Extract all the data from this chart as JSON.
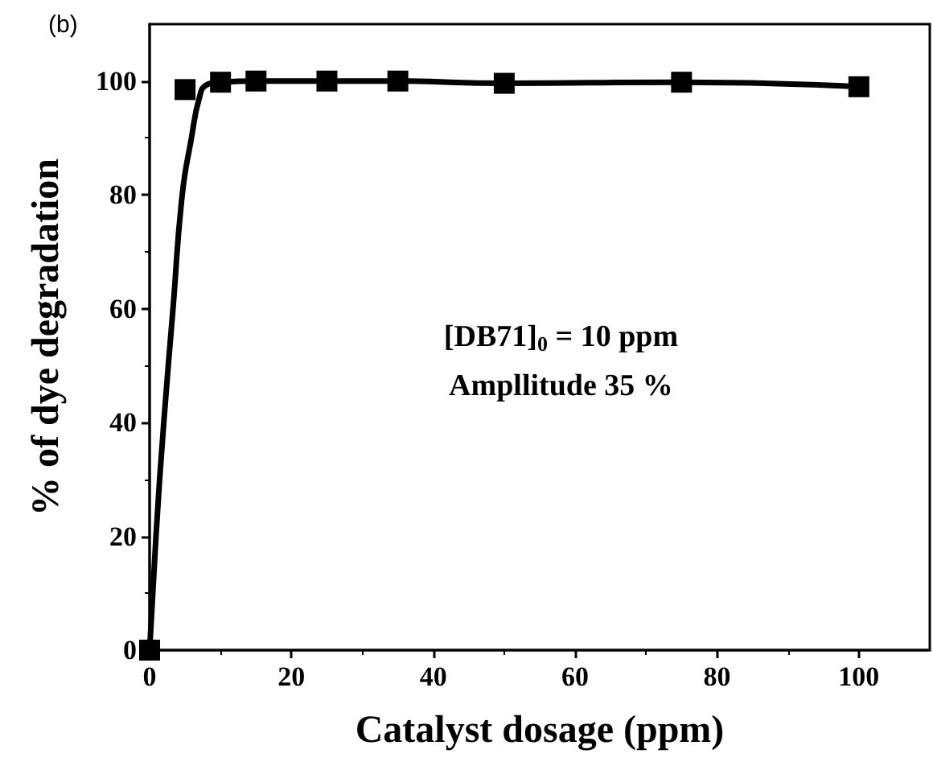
{
  "chart_data": {
    "type": "scatter",
    "xlabel": "Catalyst dosage (ppm)",
    "ylabel": "% of dye degradation",
    "annotations": [
      "(b)",
      "[DB71]$_{0}$ = 10 ppm",
      "Ampllitude 35 %"
    ],
    "xlim": [
      0,
      110
    ],
    "xticks": [
      0,
      20,
      40,
      60,
      80,
      100
    ],
    "ylim": [
      0,
      110
    ],
    "yticks": [
      0,
      20,
      40,
      60,
      80,
      100
    ],
    "grid": false,
    "marker": "square",
    "series": [
      {
        "type": "line",
        "color": "#000000",
        "marker": "none",
        "line_style": "solid",
        "x": [
          0,
          0.9,
          2,
          3.3,
          4.6,
          5.9,
          7,
          8,
          10,
          15,
          25,
          35,
          50,
          75,
          100
        ],
        "values": [
          0,
          20,
          40,
          60,
          80,
          90,
          97,
          99.3,
          99.8,
          100,
          100,
          100,
          99.6,
          99.8,
          99
        ]
      },
      {
        "color": "#000000",
        "x": [
          0,
          5,
          10,
          15,
          25,
          35,
          50,
          75,
          100
        ],
        "values": [
          0,
          98.5,
          99.8,
          100,
          100,
          100,
          99.6,
          99.8,
          99
        ]
      }
    ]
  }
}
